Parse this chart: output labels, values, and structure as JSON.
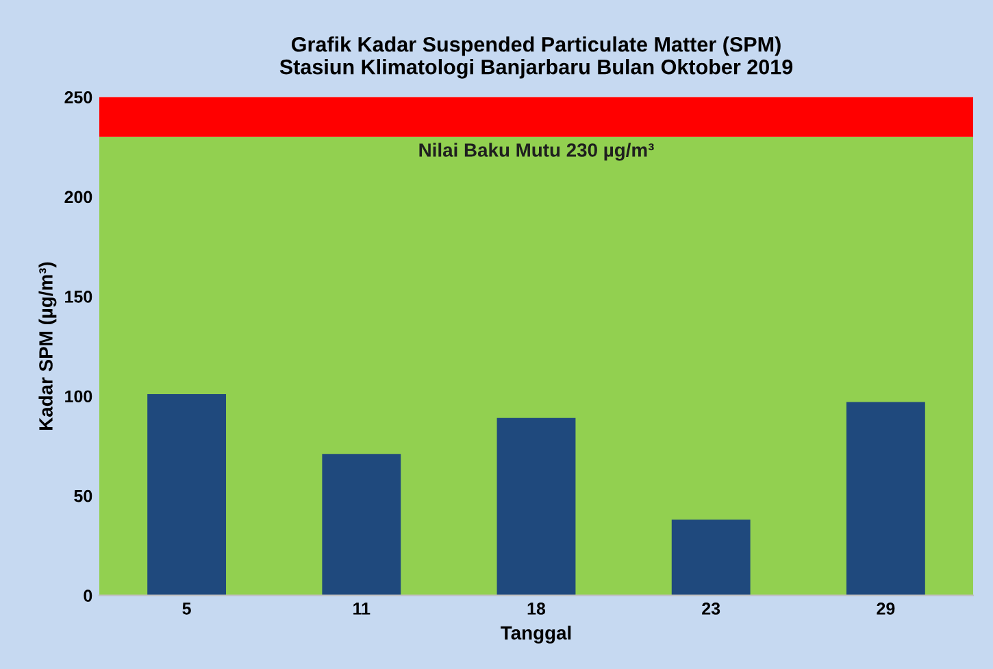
{
  "chart_data": {
    "type": "bar",
    "title": "Grafik Kadar Suspended Particulate Matter (SPM)\nStasiun Klimatologi Banjarbaru Bulan Oktober 2019",
    "xlabel": "Tanggal",
    "ylabel": "Kadar SPM (µg/m³)",
    "categories": [
      "5",
      "11",
      "18",
      "23",
      "29"
    ],
    "series": [
      {
        "color": "#1f497d",
        "values": [
          101,
          71,
          89,
          38,
          97
        ]
      }
    ],
    "ylim": [
      0,
      250
    ],
    "yticks": [
      0,
      50,
      100,
      150,
      200,
      250
    ],
    "grid": false,
    "legend": false,
    "bands": [
      {
        "axis": "y",
        "from": 0,
        "to": 230,
        "color": "#92d050",
        "label": "Nilai Baku Mutu 230 µg/m³"
      },
      {
        "axis": "y",
        "from": 230,
        "to": 250,
        "color": "#ff0000"
      }
    ]
  }
}
